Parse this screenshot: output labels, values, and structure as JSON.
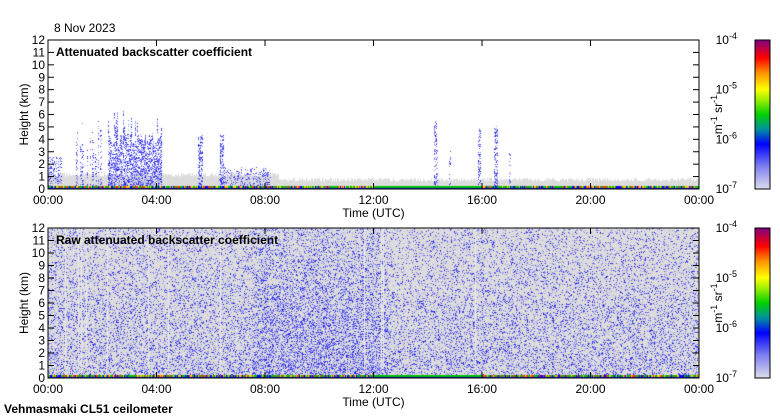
{
  "date_label": "8 Nov 2023",
  "footer_label": "Vehmasmaki CL51 ceilometer",
  "chart_data": [
    {
      "type": "heatmap",
      "title": "Attenuated backscatter coefficient",
      "xlabel": "Time (UTC)",
      "ylabel": "Height (km)",
      "xlim": [
        0,
        24
      ],
      "ylim": [
        0,
        12
      ],
      "xticks": [
        "00:00",
        "04:00",
        "08:00",
        "12:00",
        "16:00",
        "20:00",
        "00:00"
      ],
      "yticks": [
        "0",
        "1",
        "2",
        "3",
        "4",
        "5",
        "6",
        "7",
        "8",
        "9",
        "10",
        "11",
        "12"
      ],
      "colorbar": {
        "label": "m-1 sr-1",
        "ticks": [
          "10-7",
          "10-6",
          "10-5",
          "10-4"
        ],
        "range": [
          1e-07,
          0.0001
        ],
        "scale": "log"
      }
    },
    {
      "type": "heatmap",
      "title": "Raw attenuated backscatter coefficient",
      "xlabel": "Time (UTC)",
      "ylabel": "Height (km)",
      "xlim": [
        0,
        24
      ],
      "ylim": [
        0,
        12
      ],
      "xticks": [
        "00:00",
        "04:00",
        "08:00",
        "12:00",
        "16:00",
        "20:00",
        "00:00"
      ],
      "yticks": [
        "0",
        "1",
        "2",
        "3",
        "4",
        "5",
        "6",
        "7",
        "8",
        "9",
        "10",
        "11",
        "12"
      ],
      "colorbar": {
        "label": "m-1 sr-1",
        "ticks": [
          "10-7",
          "10-6",
          "10-5",
          "10-4"
        ],
        "range": [
          1e-07,
          0.0001
        ],
        "scale": "log"
      }
    }
  ]
}
